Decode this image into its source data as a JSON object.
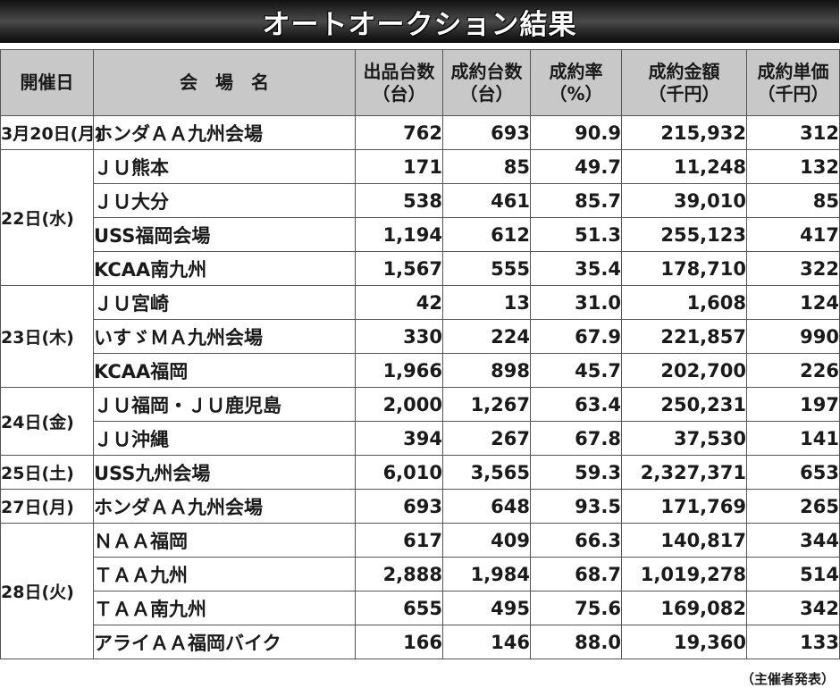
{
  "title": "オートオークション結果",
  "headers": [
    [
      "開催日"
    ],
    [
      "会　場　名"
    ],
    [
      "出品台数",
      "（台）"
    ],
    [
      "成約台数",
      "（台）"
    ],
    [
      "成約率",
      "（%）"
    ],
    [
      "成約金額",
      "（千円）"
    ],
    [
      "成約単価",
      "（千円）"
    ]
  ],
  "groups": [
    {
      "date": "3月20日(月)",
      "rows": [
        {
          "venue": "ホンダＡＡ九州会場",
          "listed": "762",
          "sold": "693",
          "rate": "90.9",
          "amount": "215,932",
          "unit": "312"
        }
      ]
    },
    {
      "date": "22日(水)",
      "rows": [
        {
          "venue": "ＪＵ熊本",
          "listed": "171",
          "sold": "85",
          "rate": "49.7",
          "amount": "11,248",
          "unit": "132"
        },
        {
          "venue": "ＪＵ大分",
          "listed": "538",
          "sold": "461",
          "rate": "85.7",
          "amount": "39,010",
          "unit": "85"
        },
        {
          "venue": "USS福岡会場",
          "listed": "1,194",
          "sold": "612",
          "rate": "51.3",
          "amount": "255,123",
          "unit": "417"
        },
        {
          "venue": "KCAA南九州",
          "listed": "1,567",
          "sold": "555",
          "rate": "35.4",
          "amount": "178,710",
          "unit": "322"
        }
      ]
    },
    {
      "date": "23日(木)",
      "rows": [
        {
          "venue": "ＪＵ宮崎",
          "listed": "42",
          "sold": "13",
          "rate": "31.0",
          "amount": "1,608",
          "unit": "124"
        },
        {
          "venue": "いすゞＭＡ九州会場",
          "listed": "330",
          "sold": "224",
          "rate": "67.9",
          "amount": "221,857",
          "unit": "990"
        },
        {
          "venue": "KCAA福岡",
          "listed": "1,966",
          "sold": "898",
          "rate": "45.7",
          "amount": "202,700",
          "unit": "226"
        }
      ]
    },
    {
      "date": "24日(金)",
      "rows": [
        {
          "venue": "ＪＵ福岡・ＪＵ鹿児島",
          "listed": "2,000",
          "sold": "1,267",
          "rate": "63.4",
          "amount": "250,231",
          "unit": "197"
        },
        {
          "venue": "ＪＵ沖縄",
          "listed": "394",
          "sold": "267",
          "rate": "67.8",
          "amount": "37,530",
          "unit": "141"
        }
      ]
    },
    {
      "date": "25日(土)",
      "rows": [
        {
          "venue": "USS九州会場",
          "listed": "6,010",
          "sold": "3,565",
          "rate": "59.3",
          "amount": "2,327,371",
          "unit": "653"
        }
      ]
    },
    {
      "date": "27日(月)",
      "rows": [
        {
          "venue": "ホンダＡＡ九州会場",
          "listed": "693",
          "sold": "648",
          "rate": "93.5",
          "amount": "171,769",
          "unit": "265"
        }
      ]
    },
    {
      "date": "28日(火)",
      "rows": [
        {
          "venue": "ＮＡＡ福岡",
          "listed": "617",
          "sold": "409",
          "rate": "66.3",
          "amount": "140,817",
          "unit": "344"
        },
        {
          "venue": "ＴＡＡ九州",
          "listed": "2,888",
          "sold": "1,984",
          "rate": "68.7",
          "amount": "1,019,278",
          "unit": "514"
        },
        {
          "venue": "ＴＡＡ南九州",
          "listed": "655",
          "sold": "495",
          "rate": "75.6",
          "amount": "169,082",
          "unit": "342"
        },
        {
          "venue": "アライＡＡ福岡バイク",
          "listed": "166",
          "sold": "146",
          "rate": "88.0",
          "amount": "19,360",
          "unit": "133"
        }
      ]
    }
  ],
  "footnote": "（主催者発表）"
}
